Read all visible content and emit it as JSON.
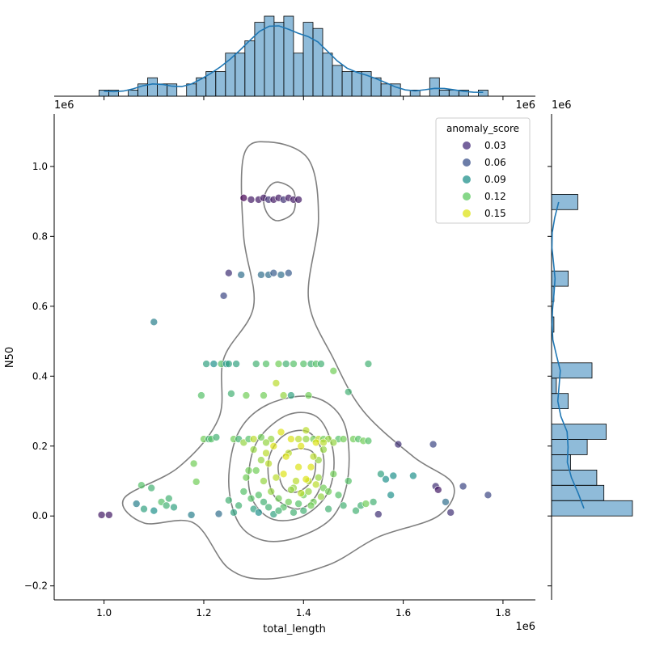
{
  "chart_data": {
    "type": "scatter",
    "xlabel": "total_length",
    "ylabel": "N50",
    "x_offset_label": "1e6",
    "y_offset_label": "1e6",
    "xlim": [
      0.9,
      1.865
    ],
    "ylim": [
      -0.24,
      1.15
    ],
    "x_ticks": [
      1.0,
      1.2,
      1.4,
      1.6,
      1.8
    ],
    "x_tick_labels": [
      "1.0",
      "1.2",
      "1.4",
      "1.6",
      "1.8"
    ],
    "y_ticks": [
      -0.2,
      0.0,
      0.2,
      0.4,
      0.6,
      0.8,
      1.0
    ],
    "y_tick_labels": [
      "−0.2",
      "0.0",
      "0.2",
      "0.4",
      "0.6",
      "0.8",
      "1.0"
    ],
    "legend": {
      "title": "anomaly_score",
      "placement": "top-right",
      "entries": [
        {
          "label": "0.03",
          "color": "#472d7b"
        },
        {
          "label": "0.06",
          "color": "#3b528b"
        },
        {
          "label": "0.09",
          "color": "#21918c"
        },
        {
          "label": "0.12",
          "color": "#5ec962"
        },
        {
          "label": "0.15",
          "color": "#dde318"
        }
      ]
    },
    "points": [
      [
        0.995,
        0.003,
        0.02
      ],
      [
        1.01,
        0.003,
        0.02
      ],
      [
        1.065,
        0.035,
        0.07
      ],
      [
        1.08,
        0.02,
        0.09
      ],
      [
        1.095,
        0.08,
        0.1
      ],
      [
        1.1,
        0.015,
        0.08
      ],
      [
        1.115,
        0.04,
        0.11
      ],
      [
        1.125,
        0.03,
        0.1
      ],
      [
        1.13,
        0.05,
        0.1
      ],
      [
        1.14,
        0.025,
        0.09
      ],
      [
        1.1,
        0.555,
        0.07
      ],
      [
        1.075,
        0.088,
        0.11
      ],
      [
        1.175,
        0.003,
        0.07
      ],
      [
        1.18,
        0.15,
        0.12
      ],
      [
        1.185,
        0.098,
        0.12
      ],
      [
        1.195,
        0.345,
        0.11
      ],
      [
        1.2,
        0.22,
        0.12
      ],
      [
        1.205,
        0.435,
        0.09
      ],
      [
        1.21,
        0.22,
        0.1
      ],
      [
        1.215,
        0.22,
        0.11
      ],
      [
        1.22,
        0.435,
        0.08
      ],
      [
        1.225,
        0.225,
        0.1
      ],
      [
        1.23,
        0.006,
        0.06
      ],
      [
        1.235,
        0.435,
        0.11
      ],
      [
        1.24,
        0.63,
        0.04
      ],
      [
        1.245,
        0.435,
        0.08
      ],
      [
        1.25,
        0.695,
        0.03
      ],
      [
        1.25,
        0.435,
        0.09
      ],
      [
        1.255,
        0.35,
        0.1
      ],
      [
        1.26,
        0.22,
        0.12
      ],
      [
        1.265,
        0.435,
        0.09
      ],
      [
        1.27,
        0.22,
        0.1
      ],
      [
        1.275,
        0.69,
        0.06
      ],
      [
        1.28,
        0.91,
        0.01
      ],
      [
        1.28,
        0.21,
        0.13
      ],
      [
        1.285,
        0.345,
        0.12
      ],
      [
        1.29,
        0.22,
        0.11
      ],
      [
        1.295,
        0.905,
        0.02
      ],
      [
        1.3,
        0.22,
        0.14
      ],
      [
        1.305,
        0.435,
        0.1
      ],
      [
        1.31,
        0.905,
        0.02
      ],
      [
        1.315,
        0.69,
        0.06
      ],
      [
        1.315,
        0.225,
        0.12
      ],
      [
        1.32,
        0.91,
        0.02
      ],
      [
        1.32,
        0.345,
        0.12
      ],
      [
        1.325,
        0.435,
        0.11
      ],
      [
        1.33,
        0.905,
        0.03
      ],
      [
        1.33,
        0.69,
        0.06
      ],
      [
        1.335,
        0.22,
        0.13
      ],
      [
        1.34,
        0.905,
        0.02
      ],
      [
        1.34,
        0.695,
        0.05
      ],
      [
        1.345,
        0.38,
        0.14
      ],
      [
        1.35,
        0.91,
        0.02
      ],
      [
        1.35,
        0.435,
        0.12
      ],
      [
        1.355,
        0.69,
        0.06
      ],
      [
        1.36,
        0.345,
        0.13
      ],
      [
        1.36,
        0.905,
        0.03
      ],
      [
        1.365,
        0.435,
        0.1
      ],
      [
        1.37,
        0.695,
        0.05
      ],
      [
        1.37,
        0.91,
        0.02
      ],
      [
        1.375,
        0.345,
        0.09
      ],
      [
        1.38,
        0.905,
        0.02
      ],
      [
        1.38,
        0.435,
        0.11
      ],
      [
        1.39,
        0.905,
        0.02
      ],
      [
        1.39,
        0.22,
        0.14
      ],
      [
        1.4,
        0.435,
        0.11
      ],
      [
        1.405,
        0.22,
        0.13
      ],
      [
        1.41,
        0.345,
        0.12
      ],
      [
        1.415,
        0.435,
        0.1
      ],
      [
        1.42,
        0.22,
        0.12
      ],
      [
        1.425,
        0.435,
        0.11
      ],
      [
        1.43,
        0.22,
        0.14
      ],
      [
        1.435,
        0.435,
        0.1
      ],
      [
        1.44,
        0.22,
        0.12
      ],
      [
        1.45,
        0.22,
        0.13
      ],
      [
        1.46,
        0.415,
        0.12
      ],
      [
        1.47,
        0.22,
        0.11
      ],
      [
        1.48,
        0.22,
        0.12
      ],
      [
        1.49,
        0.355,
        0.1
      ],
      [
        1.5,
        0.22,
        0.12
      ],
      [
        1.505,
        0.015,
        0.1
      ],
      [
        1.51,
        0.22,
        0.11
      ],
      [
        1.515,
        0.03,
        0.1
      ],
      [
        1.52,
        0.215,
        0.12
      ],
      [
        1.525,
        0.035,
        0.12
      ],
      [
        1.53,
        0.435,
        0.1
      ],
      [
        1.53,
        0.215,
        0.11
      ],
      [
        1.54,
        0.04,
        0.1
      ],
      [
        1.55,
        0.005,
        0.03
      ],
      [
        1.555,
        0.12,
        0.09
      ],
      [
        1.565,
        0.105,
        0.08
      ],
      [
        1.575,
        0.06,
        0.08
      ],
      [
        1.58,
        0.115,
        0.08
      ],
      [
        1.59,
        0.205,
        0.03
      ],
      [
        1.62,
        0.115,
        0.08
      ],
      [
        1.66,
        0.205,
        0.04
      ],
      [
        1.665,
        0.085,
        0.03
      ],
      [
        1.67,
        0.075,
        0.02
      ],
      [
        1.685,
        0.04,
        0.06
      ],
      [
        1.695,
        0.01,
        0.03
      ],
      [
        1.72,
        0.085,
        0.04
      ],
      [
        1.77,
        0.06,
        0.04
      ],
      [
        1.3,
        0.02,
        0.09
      ],
      [
        1.31,
        0.06,
        0.11
      ],
      [
        1.32,
        0.1,
        0.13
      ],
      [
        1.33,
        0.15,
        0.14
      ],
      [
        1.34,
        0.2,
        0.15
      ],
      [
        1.35,
        0.05,
        0.12
      ],
      [
        1.36,
        0.12,
        0.15
      ],
      [
        1.37,
        0.18,
        0.14
      ],
      [
        1.38,
        0.08,
        0.13
      ],
      [
        1.39,
        0.14,
        0.15
      ],
      [
        1.4,
        0.06,
        0.12
      ],
      [
        1.41,
        0.1,
        0.14
      ],
      [
        1.42,
        0.04,
        0.12
      ],
      [
        1.43,
        0.16,
        0.13
      ],
      [
        1.44,
        0.08,
        0.12
      ],
      [
        1.45,
        0.02,
        0.1
      ],
      [
        1.46,
        0.12,
        0.12
      ],
      [
        1.47,
        0.06,
        0.11
      ],
      [
        1.48,
        0.03,
        0.1
      ],
      [
        1.49,
        0.1,
        0.11
      ],
      [
        1.29,
        0.13,
        0.12
      ],
      [
        1.28,
        0.07,
        0.11
      ],
      [
        1.27,
        0.03,
        0.1
      ],
      [
        1.26,
        0.01,
        0.09
      ],
      [
        1.25,
        0.045,
        0.1
      ],
      [
        1.355,
        0.24,
        0.15
      ],
      [
        1.365,
        0.17,
        0.15
      ],
      [
        1.375,
        0.22,
        0.15
      ],
      [
        1.385,
        0.1,
        0.14
      ],
      [
        1.395,
        0.2,
        0.15
      ],
      [
        1.405,
        0.245,
        0.14
      ],
      [
        1.415,
        0.14,
        0.15
      ],
      [
        1.425,
        0.09,
        0.14
      ],
      [
        1.435,
        0.055,
        0.13
      ],
      [
        1.345,
        0.11,
        0.14
      ],
      [
        1.335,
        0.07,
        0.13
      ],
      [
        1.325,
        0.18,
        0.14
      ],
      [
        1.315,
        0.16,
        0.13
      ],
      [
        1.305,
        0.13,
        0.12
      ],
      [
        1.295,
        0.05,
        0.11
      ],
      [
        1.36,
        0.025,
        0.11
      ],
      [
        1.37,
        0.04,
        0.12
      ],
      [
        1.38,
        0.01,
        0.1
      ],
      [
        1.39,
        0.035,
        0.11
      ],
      [
        1.4,
        0.015,
        0.1
      ],
      [
        1.41,
        0.07,
        0.13
      ],
      [
        1.42,
        0.17,
        0.14
      ],
      [
        1.43,
        0.11,
        0.13
      ],
      [
        1.44,
        0.19,
        0.13
      ],
      [
        1.45,
        0.07,
        0.12
      ],
      [
        1.31,
        0.01,
        0.08
      ],
      [
        1.32,
        0.04,
        0.1
      ],
      [
        1.33,
        0.025,
        0.1
      ],
      [
        1.34,
        0.005,
        0.09
      ],
      [
        1.35,
        0.015,
        0.1
      ],
      [
        1.285,
        0.11,
        0.12
      ],
      [
        1.3,
        0.19,
        0.13
      ],
      [
        1.325,
        0.21,
        0.13
      ],
      [
        1.375,
        0.075,
        0.13
      ],
      [
        1.395,
        0.065,
        0.14
      ],
      [
        1.405,
        0.105,
        0.15
      ],
      [
        1.415,
        0.03,
        0.12
      ],
      [
        1.425,
        0.21,
        0.15
      ],
      [
        1.44,
        0.21,
        0.14
      ],
      [
        1.46,
        0.21,
        0.13
      ]
    ]
  }
}
